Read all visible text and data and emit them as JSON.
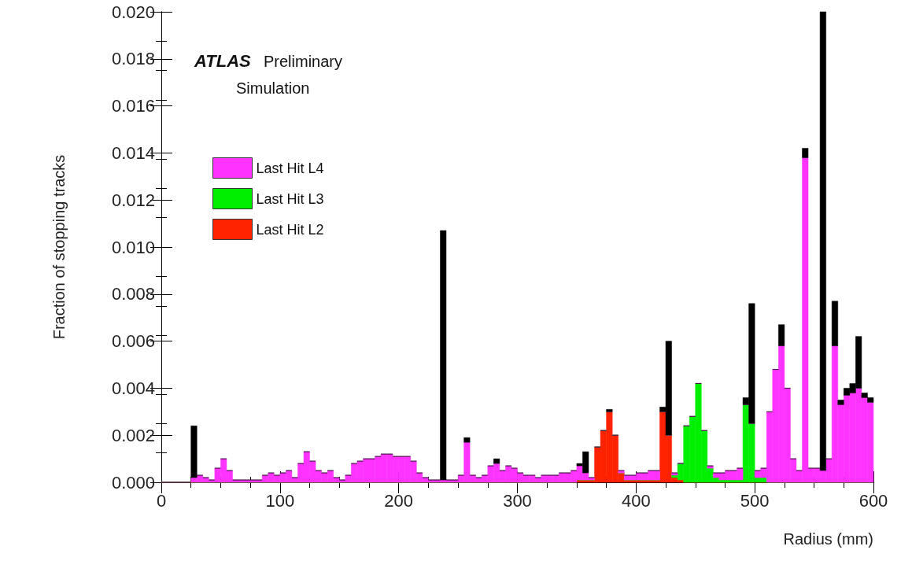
{
  "chart_data": {
    "type": "bar",
    "xlabel": "Radius (mm)",
    "ylabel": "Fraction of stopping tracks",
    "annotations": [
      "ATLAS",
      "Preliminary",
      "Simulation"
    ],
    "x": [
      2.5,
      7.5,
      12.5,
      17.5,
      22.5,
      27.5,
      32.5,
      37.5,
      42.5,
      47.5,
      52.5,
      57.5,
      62.5,
      67.5,
      72.5,
      77.5,
      82.5,
      87.5,
      92.5,
      97.5,
      102.5,
      107.5,
      112.5,
      117.5,
      122.5,
      127.5,
      132.5,
      137.5,
      142.5,
      147.5,
      152.5,
      157.5,
      162.5,
      167.5,
      172.5,
      177.5,
      182.5,
      187.5,
      192.5,
      197.5,
      202.5,
      207.5,
      212.5,
      217.5,
      222.5,
      227.5,
      232.5,
      237.5,
      242.5,
      247.5,
      252.5,
      257.5,
      262.5,
      267.5,
      272.5,
      277.5,
      282.5,
      287.5,
      292.5,
      297.5,
      302.5,
      307.5,
      312.5,
      317.5,
      322.5,
      327.5,
      332.5,
      337.5,
      342.5,
      347.5,
      352.5,
      357.5,
      362.5,
      367.5,
      372.5,
      377.5,
      382.5,
      387.5,
      392.5,
      397.5,
      402.5,
      407.5,
      412.5,
      417.5,
      422.5,
      427.5,
      432.5,
      437.5,
      442.5,
      447.5,
      452.5,
      457.5,
      462.5,
      467.5,
      472.5,
      477.5,
      482.5,
      487.5,
      492.5,
      497.5,
      502.5,
      507.5,
      512.5,
      517.5,
      522.5,
      527.5,
      532.5,
      537.5,
      542.5,
      547.5,
      552.5,
      557.5,
      562.5,
      567.5,
      572.5,
      577.5,
      582.5,
      587.5,
      592.5,
      597.5
    ],
    "stacked": true,
    "series": [
      {
        "name": "Last Hit L2",
        "color": "#ff2200",
        "values": [
          0,
          0,
          0,
          0,
          0,
          0,
          0,
          0,
          0,
          0,
          0,
          0,
          0,
          0,
          0,
          0,
          0,
          0,
          0,
          0,
          0,
          0,
          0,
          0,
          0,
          0,
          0,
          0,
          0,
          0,
          0,
          0,
          0,
          0,
          0,
          0,
          0,
          0,
          0,
          0,
          0,
          0,
          0,
          0,
          0,
          0,
          0,
          0,
          0,
          0,
          0,
          0,
          0,
          0,
          0,
          0,
          0,
          0,
          0,
          0,
          0,
          0,
          0,
          0,
          0,
          0,
          0,
          0,
          0,
          0,
          0.0001,
          0.0001,
          0.0001,
          0.0015,
          0.0022,
          0.003,
          0.002,
          0.0004,
          0.0001,
          0.0001,
          0.0001,
          0.0001,
          0.0001,
          0.0001,
          0.003,
          0.002,
          0.0002,
          0.0001,
          0,
          0,
          0,
          0,
          0,
          0,
          0,
          0,
          0,
          0,
          0,
          0,
          0,
          0,
          0,
          0,
          0,
          0,
          0,
          0,
          0,
          0,
          0,
          0,
          0,
          0,
          0,
          0,
          0,
          0,
          0,
          0
        ]
      },
      {
        "name": "Last Hit L3",
        "color": "#00ee00",
        "values": [
          0,
          0,
          0,
          0,
          0,
          0,
          0,
          0,
          0,
          0,
          0,
          0,
          0,
          0,
          0,
          0,
          0,
          0,
          0,
          0,
          0,
          0,
          0,
          0,
          0,
          0,
          0,
          0,
          0,
          0,
          0,
          0,
          0,
          0,
          0,
          0,
          0,
          0,
          0,
          0,
          0,
          0,
          0,
          0,
          0,
          0,
          0,
          0,
          0,
          0,
          0,
          0,
          0,
          0,
          0,
          0,
          0,
          0,
          0,
          0,
          0,
          0,
          0,
          0,
          0,
          0,
          0,
          0,
          0,
          0,
          0,
          0,
          0,
          0,
          0,
          0,
          0,
          0,
          0,
          0,
          0,
          0,
          0,
          0,
          0,
          0,
          0.0001,
          0.0007,
          0.0024,
          0.0028,
          0.0042,
          0.0022,
          0.0006,
          0.0002,
          0.0001,
          0.0001,
          0.0001,
          0.0001,
          0.0033,
          0.0025,
          0.0002,
          0.0002,
          0,
          0,
          0,
          0,
          0,
          0,
          0,
          0,
          0,
          0,
          0,
          0,
          0,
          0,
          0,
          0,
          0,
          0
        ]
      },
      {
        "name": "Last Hit L4",
        "color": "#ff33ff",
        "values": [
          0,
          0,
          0,
          0,
          0,
          0.0002,
          0.0003,
          0.0002,
          0.0001,
          0.0006,
          0.001,
          0.0005,
          0.0001,
          0.0001,
          0.0001,
          0.0001,
          0.0001,
          0.0003,
          0.0004,
          0.0003,
          0.0004,
          0.0005,
          0.0002,
          0.0008,
          0.0013,
          0.0009,
          0.0005,
          0.0004,
          0.0005,
          0.0002,
          0.0001,
          0.0003,
          0.0008,
          0.0009,
          0.001,
          0.001,
          0.0011,
          0.0012,
          0.0012,
          0.0011,
          0.0011,
          0.0011,
          0.0009,
          0.0004,
          0.0002,
          0.0001,
          0.0001,
          0.0001,
          0.0001,
          0.0001,
          0.0003,
          0.0017,
          0.0003,
          0.0002,
          0.0003,
          0.0007,
          0.0008,
          0.0005,
          0.0007,
          0.0006,
          0.0004,
          0.0003,
          0.0003,
          0.0002,
          0.0003,
          0.0003,
          0.0003,
          0.0004,
          0.0004,
          0.0005,
          0.0006,
          0.0003,
          0.0001,
          0,
          0,
          0,
          0,
          0.0001,
          0.0002,
          0.0002,
          0.0003,
          0.0003,
          0.0004,
          0.0004,
          0,
          0,
          0.0001,
          0,
          0,
          0,
          0,
          0,
          0.0001,
          0.0002,
          0.0003,
          0.0004,
          0.0004,
          0.0005,
          0,
          0,
          0.0003,
          0.0004,
          0.003,
          0.0048,
          0.0058,
          0.004,
          0.001,
          0.0005,
          0.0138,
          0.0006,
          0.0006,
          0.0005,
          0.001,
          0.0058,
          0.0033,
          0.0037,
          0.0038,
          0.004,
          0.0036,
          0.0034
        ]
      },
      {
        "color": "#000000",
        "values": [
          0,
          0,
          0,
          0,
          0,
          0.0022,
          0,
          0,
          0,
          0,
          0,
          0,
          0,
          0,
          0,
          0,
          0,
          0,
          0,
          0,
          0,
          0,
          0,
          0,
          0,
          0,
          0,
          0,
          0,
          0,
          0,
          0,
          0,
          0,
          0,
          0,
          0,
          0,
          0,
          0,
          0,
          0,
          0,
          0,
          0,
          0,
          0,
          0.0106,
          0,
          0,
          0,
          0.0002,
          0,
          0,
          0,
          0,
          0.0002,
          0,
          0,
          0,
          0,
          0,
          0,
          0,
          0,
          0,
          0,
          0,
          0,
          0,
          0.0001,
          0.0009,
          0,
          0,
          0,
          0.0001,
          0,
          0,
          0,
          0,
          0,
          0,
          0,
          0,
          0.0002,
          0.004,
          0,
          0,
          0,
          0,
          0,
          0,
          0,
          0,
          0,
          0,
          0,
          0,
          0.0003,
          0.0051,
          0,
          0,
          0,
          0,
          0.0009,
          0,
          0,
          0,
          0.0004,
          0,
          0,
          0.0195,
          0,
          0.0019,
          0.0002,
          0.0003,
          0.0004,
          0.0022,
          0.0002,
          0.0002
        ]
      }
    ],
    "xlim": [
      0,
      600
    ],
    "xticks": [
      0,
      100,
      200,
      300,
      400,
      500,
      600
    ],
    "ylim": [
      0,
      0.02
    ],
    "yticks": [
      {
        "value": 0,
        "label": "0.000"
      },
      {
        "value": 0.002,
        "label": "0.002"
      },
      {
        "value": 0.004,
        "label": "0.004"
      },
      {
        "value": 0.006,
        "label": "0.006"
      },
      {
        "value": 0.008,
        "label": "0.008"
      },
      {
        "value": 0.01,
        "label": "0.010"
      },
      {
        "value": 0.012,
        "label": "0.012"
      },
      {
        "value": 0.014,
        "label": "0.014"
      },
      {
        "value": 0.016,
        "label": "0.016"
      },
      {
        "value": 0.018,
        "label": "0.018"
      },
      {
        "value": 0.02,
        "label": "0.020"
      }
    ],
    "legend": "top left",
    "grid": false
  }
}
